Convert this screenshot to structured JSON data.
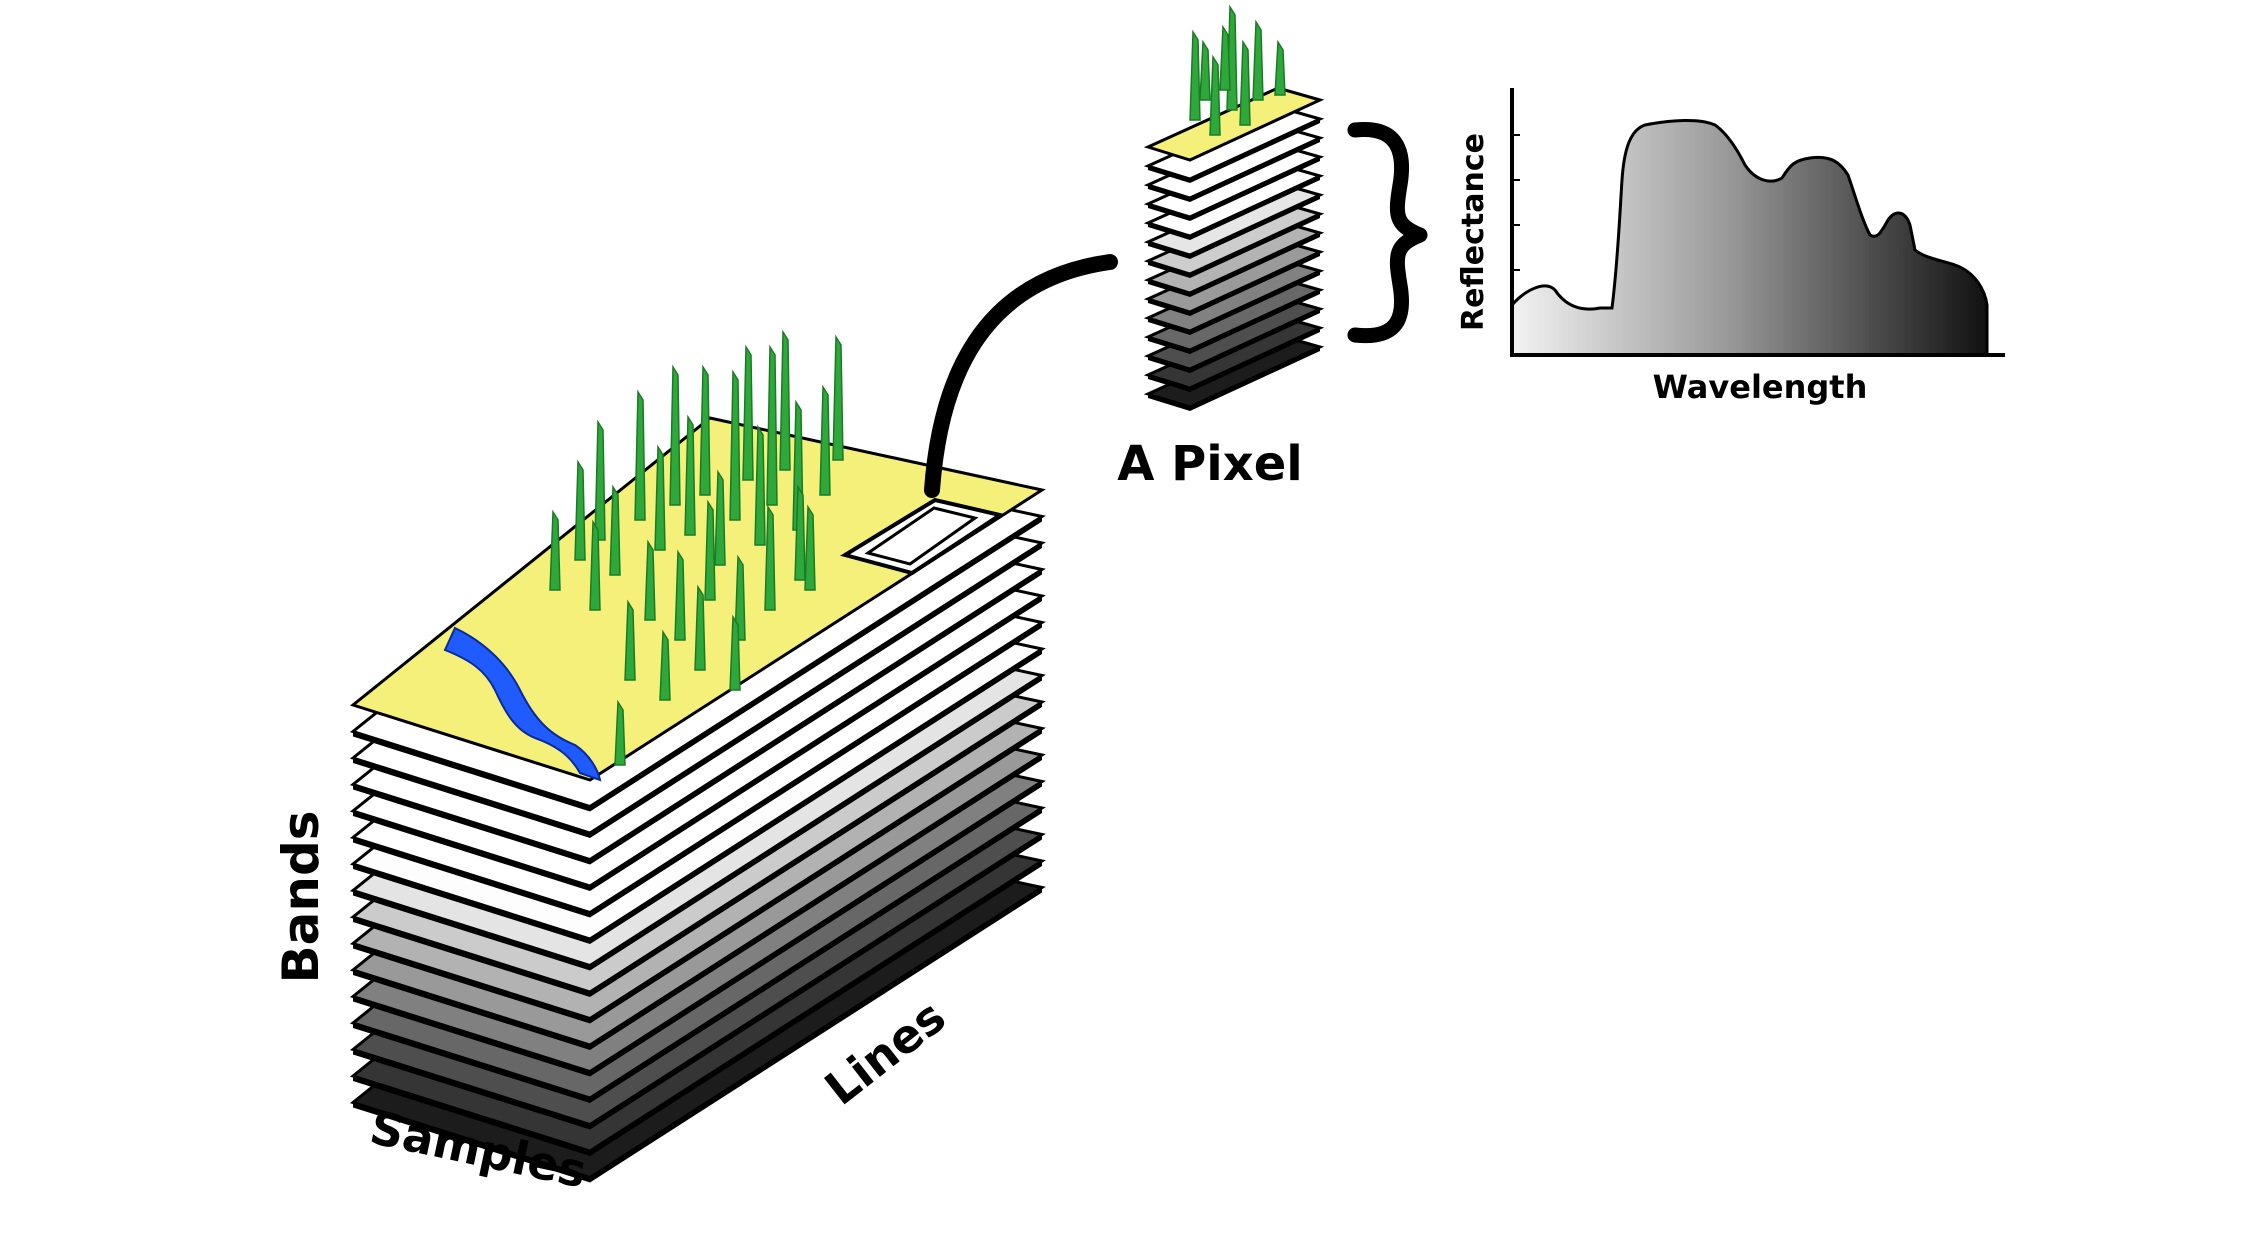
{
  "labels": {
    "bands": "Bands",
    "samples": "Samples",
    "lines": "Lines",
    "pixel": "A Pixel",
    "reflectance": "Reflectance",
    "wavelength": "Wavelength"
  },
  "colors": {
    "top_layer": "#f5f07a",
    "river": "#1f5bff",
    "trees": "#2ea83a",
    "tree_dark": "#1c7a26",
    "layer_light": "#ffffff",
    "layer_dark": "#1c1c1c",
    "outline": "#000000"
  },
  "cube": {
    "band_count": 16
  },
  "pixel_stack": {
    "band_count": 14
  },
  "spectrum": {
    "shading": "gradient light-to-dark with increasing wavelength"
  }
}
